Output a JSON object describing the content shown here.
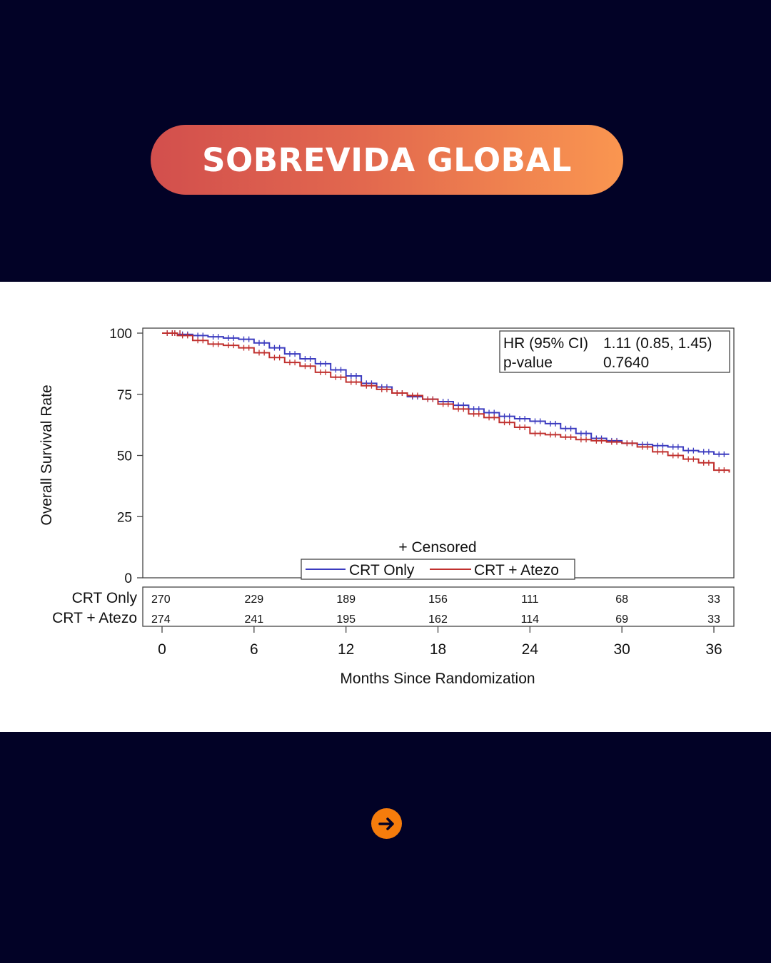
{
  "header": {
    "title": "SOBREVIDA GLOBAL"
  },
  "chart_data": {
    "type": "line",
    "ylabel": "Overall Survival Rate",
    "xlabel": "Months Since Randomization",
    "ylim": [
      0,
      100
    ],
    "xlim": [
      0,
      37
    ],
    "yticks": [
      0,
      25,
      50,
      75,
      100
    ],
    "xticks": [
      0,
      6,
      12,
      18,
      24,
      30,
      36
    ],
    "series": [
      {
        "name": "CRT Only",
        "color": "#3b3bbf",
        "x": [
          0,
          0.5,
          1,
          2,
          3,
          4,
          5,
          6,
          7,
          8,
          9,
          10,
          11,
          12,
          13,
          14,
          15,
          16,
          17,
          18,
          19,
          20,
          21,
          22,
          23,
          24,
          25,
          26,
          27,
          28,
          29,
          30,
          31,
          32,
          33,
          34,
          35,
          36,
          37
        ],
        "values": [
          100,
          100,
          99.5,
          99,
          98.5,
          98,
          97.5,
          96,
          94,
          91.5,
          89.5,
          87.5,
          85,
          82.5,
          79.5,
          78,
          75.5,
          74,
          73,
          72,
          70.5,
          69,
          67.5,
          66,
          65,
          64,
          63,
          61,
          59,
          57,
          56,
          55,
          54.5,
          54,
          53.5,
          52,
          51.5,
          50.5,
          50.5
        ]
      },
      {
        "name": "CRT + Atezo",
        "color": "#c0302e",
        "x": [
          0,
          0.5,
          1,
          2,
          3,
          4,
          5,
          6,
          7,
          8,
          9,
          10,
          11,
          12,
          13,
          14,
          15,
          16,
          17,
          18,
          19,
          20,
          21,
          22,
          23,
          24,
          25,
          26,
          27,
          28,
          29,
          30,
          31,
          32,
          33,
          34,
          35,
          36,
          37
        ],
        "values": [
          100,
          100,
          99,
          97,
          95.5,
          95,
          94,
          92,
          90,
          88,
          86.5,
          84,
          82,
          80,
          78.5,
          77,
          75.5,
          74.5,
          73,
          71,
          69,
          67,
          65.5,
          63.5,
          61.5,
          59,
          58.5,
          57.5,
          56.5,
          56,
          55.5,
          55,
          53.5,
          51.5,
          50,
          48.5,
          47,
          44,
          43
        ]
      }
    ],
    "legend": {
      "title": "+ Censored",
      "placement": "bottom-center"
    },
    "annotation": {
      "hr_label": "HR (95% CI)",
      "hr_value": "1.11 (0.85, 1.45)",
      "p_label": "p-value",
      "p_value": "0.7640",
      "placement": "top-right"
    },
    "risk_table": {
      "x": [
        0,
        6,
        12,
        18,
        24,
        30,
        36
      ],
      "rows": [
        {
          "label": "CRT Only",
          "values": [
            "270",
            "229",
            "189",
            "156",
            "111",
            "68",
            "33"
          ]
        },
        {
          "label": "CRT + Atezo",
          "values": [
            "274",
            "241",
            "195",
            "162",
            "114",
            "69",
            "33"
          ]
        }
      ]
    }
  },
  "footer": {
    "next_icon": "arrow-right-icon",
    "next_color": "#f57c0c"
  }
}
